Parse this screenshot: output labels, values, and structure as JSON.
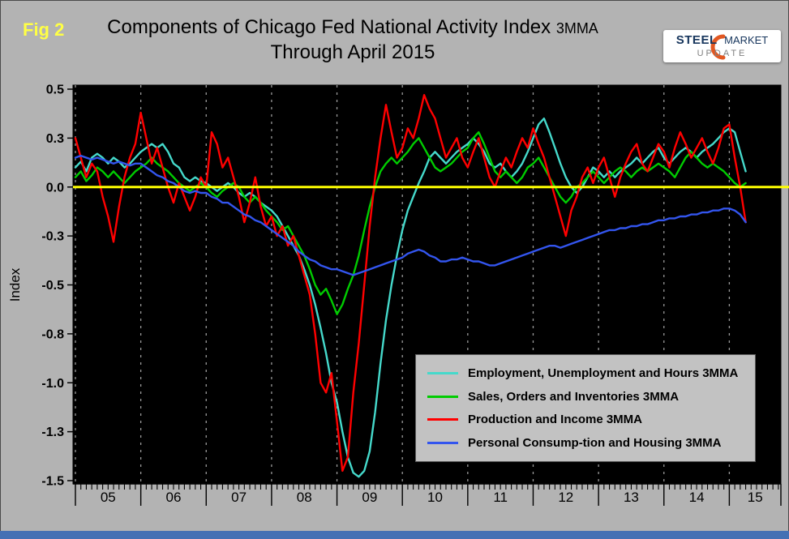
{
  "figure_label": "Fig 2",
  "title": {
    "main": "Components of Chicago Fed National Activity Index",
    "suffix": "3MMA",
    "subtitle": "Through April 2015"
  },
  "logo": {
    "steel": "STEEL",
    "market": "MARKET",
    "update": "UPDATE"
  },
  "chart_data": {
    "type": "line",
    "title": "Components of Chicago Fed National Activity Index 3MMA Through April 2015",
    "ylabel": "Index",
    "x_unit": "month",
    "x_range": [
      "2005-01",
      "2015-04"
    ],
    "x_year_labels": [
      "05",
      "06",
      "07",
      "08",
      "09",
      "10",
      "11",
      "12",
      "13",
      "14",
      "15"
    ],
    "ylim": [
      -1.5,
      0.5
    ],
    "y_ticks": {
      "values": [
        0.5,
        0.25,
        0,
        -0.25,
        -0.5,
        -0.75,
        -1,
        -1.25,
        -1.5
      ],
      "labels": [
        "0.5",
        "0.3",
        "0.0",
        "-0.3",
        "-0.5",
        "-0.8",
        "-1.0",
        "-1.3",
        "-1.5"
      ]
    },
    "grid": "vertical dashed lines at year boundaries",
    "plot_bg": "#000000",
    "zero_line_color": "#ffff00",
    "legend_position": "inside bottom-right",
    "series": [
      {
        "name": "Employment, Unemployment and Hours 3MMA",
        "color": "#45d9cb",
        "values": [
          0.1,
          0.13,
          0.08,
          0.15,
          0.17,
          0.15,
          0.12,
          0.15,
          0.13,
          0.1,
          0.12,
          0.15,
          0.18,
          0.2,
          0.22,
          0.2,
          0.22,
          0.18,
          0.12,
          0.1,
          0.05,
          0.03,
          0.05,
          0.03,
          0.02,
          0.0,
          -0.02,
          0.0,
          0.02,
          0.0,
          -0.03,
          -0.05,
          -0.03,
          -0.05,
          -0.08,
          -0.1,
          -0.12,
          -0.15,
          -0.2,
          -0.25,
          -0.3,
          -0.35,
          -0.42,
          -0.5,
          -0.6,
          -0.72,
          -0.85,
          -1.0,
          -1.1,
          -1.25,
          -1.38,
          -1.46,
          -1.48,
          -1.45,
          -1.35,
          -1.15,
          -0.9,
          -0.68,
          -0.5,
          -0.35,
          -0.22,
          -0.12,
          -0.05,
          0.02,
          0.08,
          0.15,
          0.18,
          0.15,
          0.12,
          0.15,
          0.18,
          0.2,
          0.22,
          0.25,
          0.22,
          0.18,
          0.12,
          0.1,
          0.12,
          0.08,
          0.05,
          0.08,
          0.12,
          0.18,
          0.25,
          0.32,
          0.35,
          0.28,
          0.2,
          0.12,
          0.05,
          0.0,
          -0.03,
          0.0,
          0.05,
          0.1,
          0.08,
          0.05,
          0.08,
          0.05,
          0.08,
          0.1,
          0.12,
          0.15,
          0.12,
          0.15,
          0.18,
          0.2,
          0.15,
          0.12,
          0.15,
          0.18,
          0.2,
          0.18,
          0.15,
          0.18,
          0.2,
          0.22,
          0.25,
          0.28,
          0.3,
          0.28,
          0.18,
          0.08
        ]
      },
      {
        "name": "Sales, Orders and Inventories 3MMA",
        "color": "#00cc00",
        "values": [
          0.05,
          0.08,
          0.03,
          0.06,
          0.1,
          0.08,
          0.05,
          0.08,
          0.05,
          0.02,
          0.05,
          0.08,
          0.1,
          0.12,
          0.15,
          0.12,
          0.1,
          0.08,
          0.05,
          0.02,
          0.0,
          -0.02,
          0.0,
          0.02,
          0.0,
          -0.03,
          -0.05,
          -0.02,
          0.0,
          0.02,
          0.0,
          -0.05,
          -0.08,
          -0.05,
          -0.08,
          -0.12,
          -0.15,
          -0.18,
          -0.22,
          -0.2,
          -0.25,
          -0.3,
          -0.35,
          -0.42,
          -0.5,
          -0.55,
          -0.52,
          -0.58,
          -0.65,
          -0.6,
          -0.52,
          -0.45,
          -0.35,
          -0.22,
          -0.1,
          0.0,
          0.08,
          0.12,
          0.15,
          0.12,
          0.15,
          0.18,
          0.22,
          0.25,
          0.2,
          0.15,
          0.1,
          0.08,
          0.1,
          0.12,
          0.15,
          0.18,
          0.2,
          0.25,
          0.28,
          0.22,
          0.15,
          0.08,
          0.05,
          0.08,
          0.05,
          0.02,
          0.05,
          0.1,
          0.12,
          0.15,
          0.1,
          0.05,
          0.0,
          -0.05,
          -0.08,
          -0.05,
          0.0,
          0.02,
          0.05,
          0.08,
          0.05,
          0.02,
          0.05,
          0.08,
          0.1,
          0.08,
          0.05,
          0.08,
          0.1,
          0.08,
          0.1,
          0.12,
          0.1,
          0.08,
          0.05,
          0.1,
          0.15,
          0.18,
          0.15,
          0.12,
          0.1,
          0.12,
          0.1,
          0.08,
          0.05,
          0.02,
          0.0,
          0.02
        ]
      },
      {
        "name": "Production and Income 3MMA",
        "color": "#ff0000",
        "values": [
          0.25,
          0.15,
          0.05,
          0.12,
          0.08,
          -0.05,
          -0.15,
          -0.28,
          -0.1,
          0.05,
          0.15,
          0.22,
          0.38,
          0.25,
          0.12,
          0.2,
          0.1,
          0.0,
          -0.08,
          0.02,
          -0.05,
          -0.12,
          -0.05,
          0.05,
          0.0,
          0.28,
          0.22,
          0.1,
          0.15,
          0.05,
          -0.05,
          -0.18,
          -0.08,
          0.05,
          -0.1,
          -0.2,
          -0.15,
          -0.25,
          -0.2,
          -0.3,
          -0.25,
          -0.35,
          -0.45,
          -0.55,
          -0.75,
          -1.0,
          -1.05,
          -0.95,
          -1.2,
          -1.45,
          -1.38,
          -1.05,
          -0.8,
          -0.5,
          -0.2,
          0.05,
          0.25,
          0.42,
          0.28,
          0.15,
          0.2,
          0.3,
          0.25,
          0.35,
          0.47,
          0.4,
          0.35,
          0.25,
          0.15,
          0.2,
          0.25,
          0.15,
          0.1,
          0.18,
          0.25,
          0.15,
          0.05,
          0.0,
          0.08,
          0.15,
          0.1,
          0.18,
          0.25,
          0.2,
          0.3,
          0.22,
          0.15,
          0.05,
          -0.05,
          -0.15,
          -0.25,
          -0.12,
          -0.05,
          0.05,
          0.1,
          0.02,
          0.1,
          0.15,
          0.05,
          -0.05,
          0.05,
          0.12,
          0.18,
          0.22,
          0.12,
          0.08,
          0.15,
          0.22,
          0.18,
          0.1,
          0.2,
          0.28,
          0.22,
          0.15,
          0.2,
          0.25,
          0.18,
          0.12,
          0.2,
          0.3,
          0.32,
          0.15,
          0.0,
          -0.18
        ]
      },
      {
        "name": "Personal Consump-tion and Housing 3MMA",
        "color": "#3355ee",
        "values": [
          0.15,
          0.16,
          0.15,
          0.14,
          0.15,
          0.14,
          0.13,
          0.12,
          0.13,
          0.12,
          0.11,
          0.12,
          0.12,
          0.1,
          0.08,
          0.06,
          0.05,
          0.03,
          0.02,
          0.0,
          -0.02,
          -0.03,
          -0.02,
          -0.03,
          -0.03,
          -0.05,
          -0.06,
          -0.08,
          -0.08,
          -0.1,
          -0.12,
          -0.14,
          -0.15,
          -0.17,
          -0.18,
          -0.2,
          -0.22,
          -0.24,
          -0.26,
          -0.28,
          -0.3,
          -0.33,
          -0.35,
          -0.37,
          -0.38,
          -0.4,
          -0.41,
          -0.42,
          -0.42,
          -0.43,
          -0.44,
          -0.45,
          -0.44,
          -0.43,
          -0.42,
          -0.41,
          -0.4,
          -0.39,
          -0.38,
          -0.37,
          -0.36,
          -0.34,
          -0.33,
          -0.32,
          -0.33,
          -0.35,
          -0.36,
          -0.38,
          -0.38,
          -0.37,
          -0.37,
          -0.36,
          -0.37,
          -0.38,
          -0.38,
          -0.39,
          -0.4,
          -0.4,
          -0.39,
          -0.38,
          -0.37,
          -0.36,
          -0.35,
          -0.34,
          -0.33,
          -0.32,
          -0.31,
          -0.3,
          -0.3,
          -0.31,
          -0.3,
          -0.29,
          -0.28,
          -0.27,
          -0.26,
          -0.25,
          -0.24,
          -0.23,
          -0.22,
          -0.22,
          -0.21,
          -0.21,
          -0.2,
          -0.2,
          -0.19,
          -0.19,
          -0.18,
          -0.17,
          -0.17,
          -0.16,
          -0.16,
          -0.15,
          -0.15,
          -0.14,
          -0.14,
          -0.13,
          -0.13,
          -0.12,
          -0.12,
          -0.11,
          -0.11,
          -0.12,
          -0.14,
          -0.18
        ]
      }
    ]
  }
}
